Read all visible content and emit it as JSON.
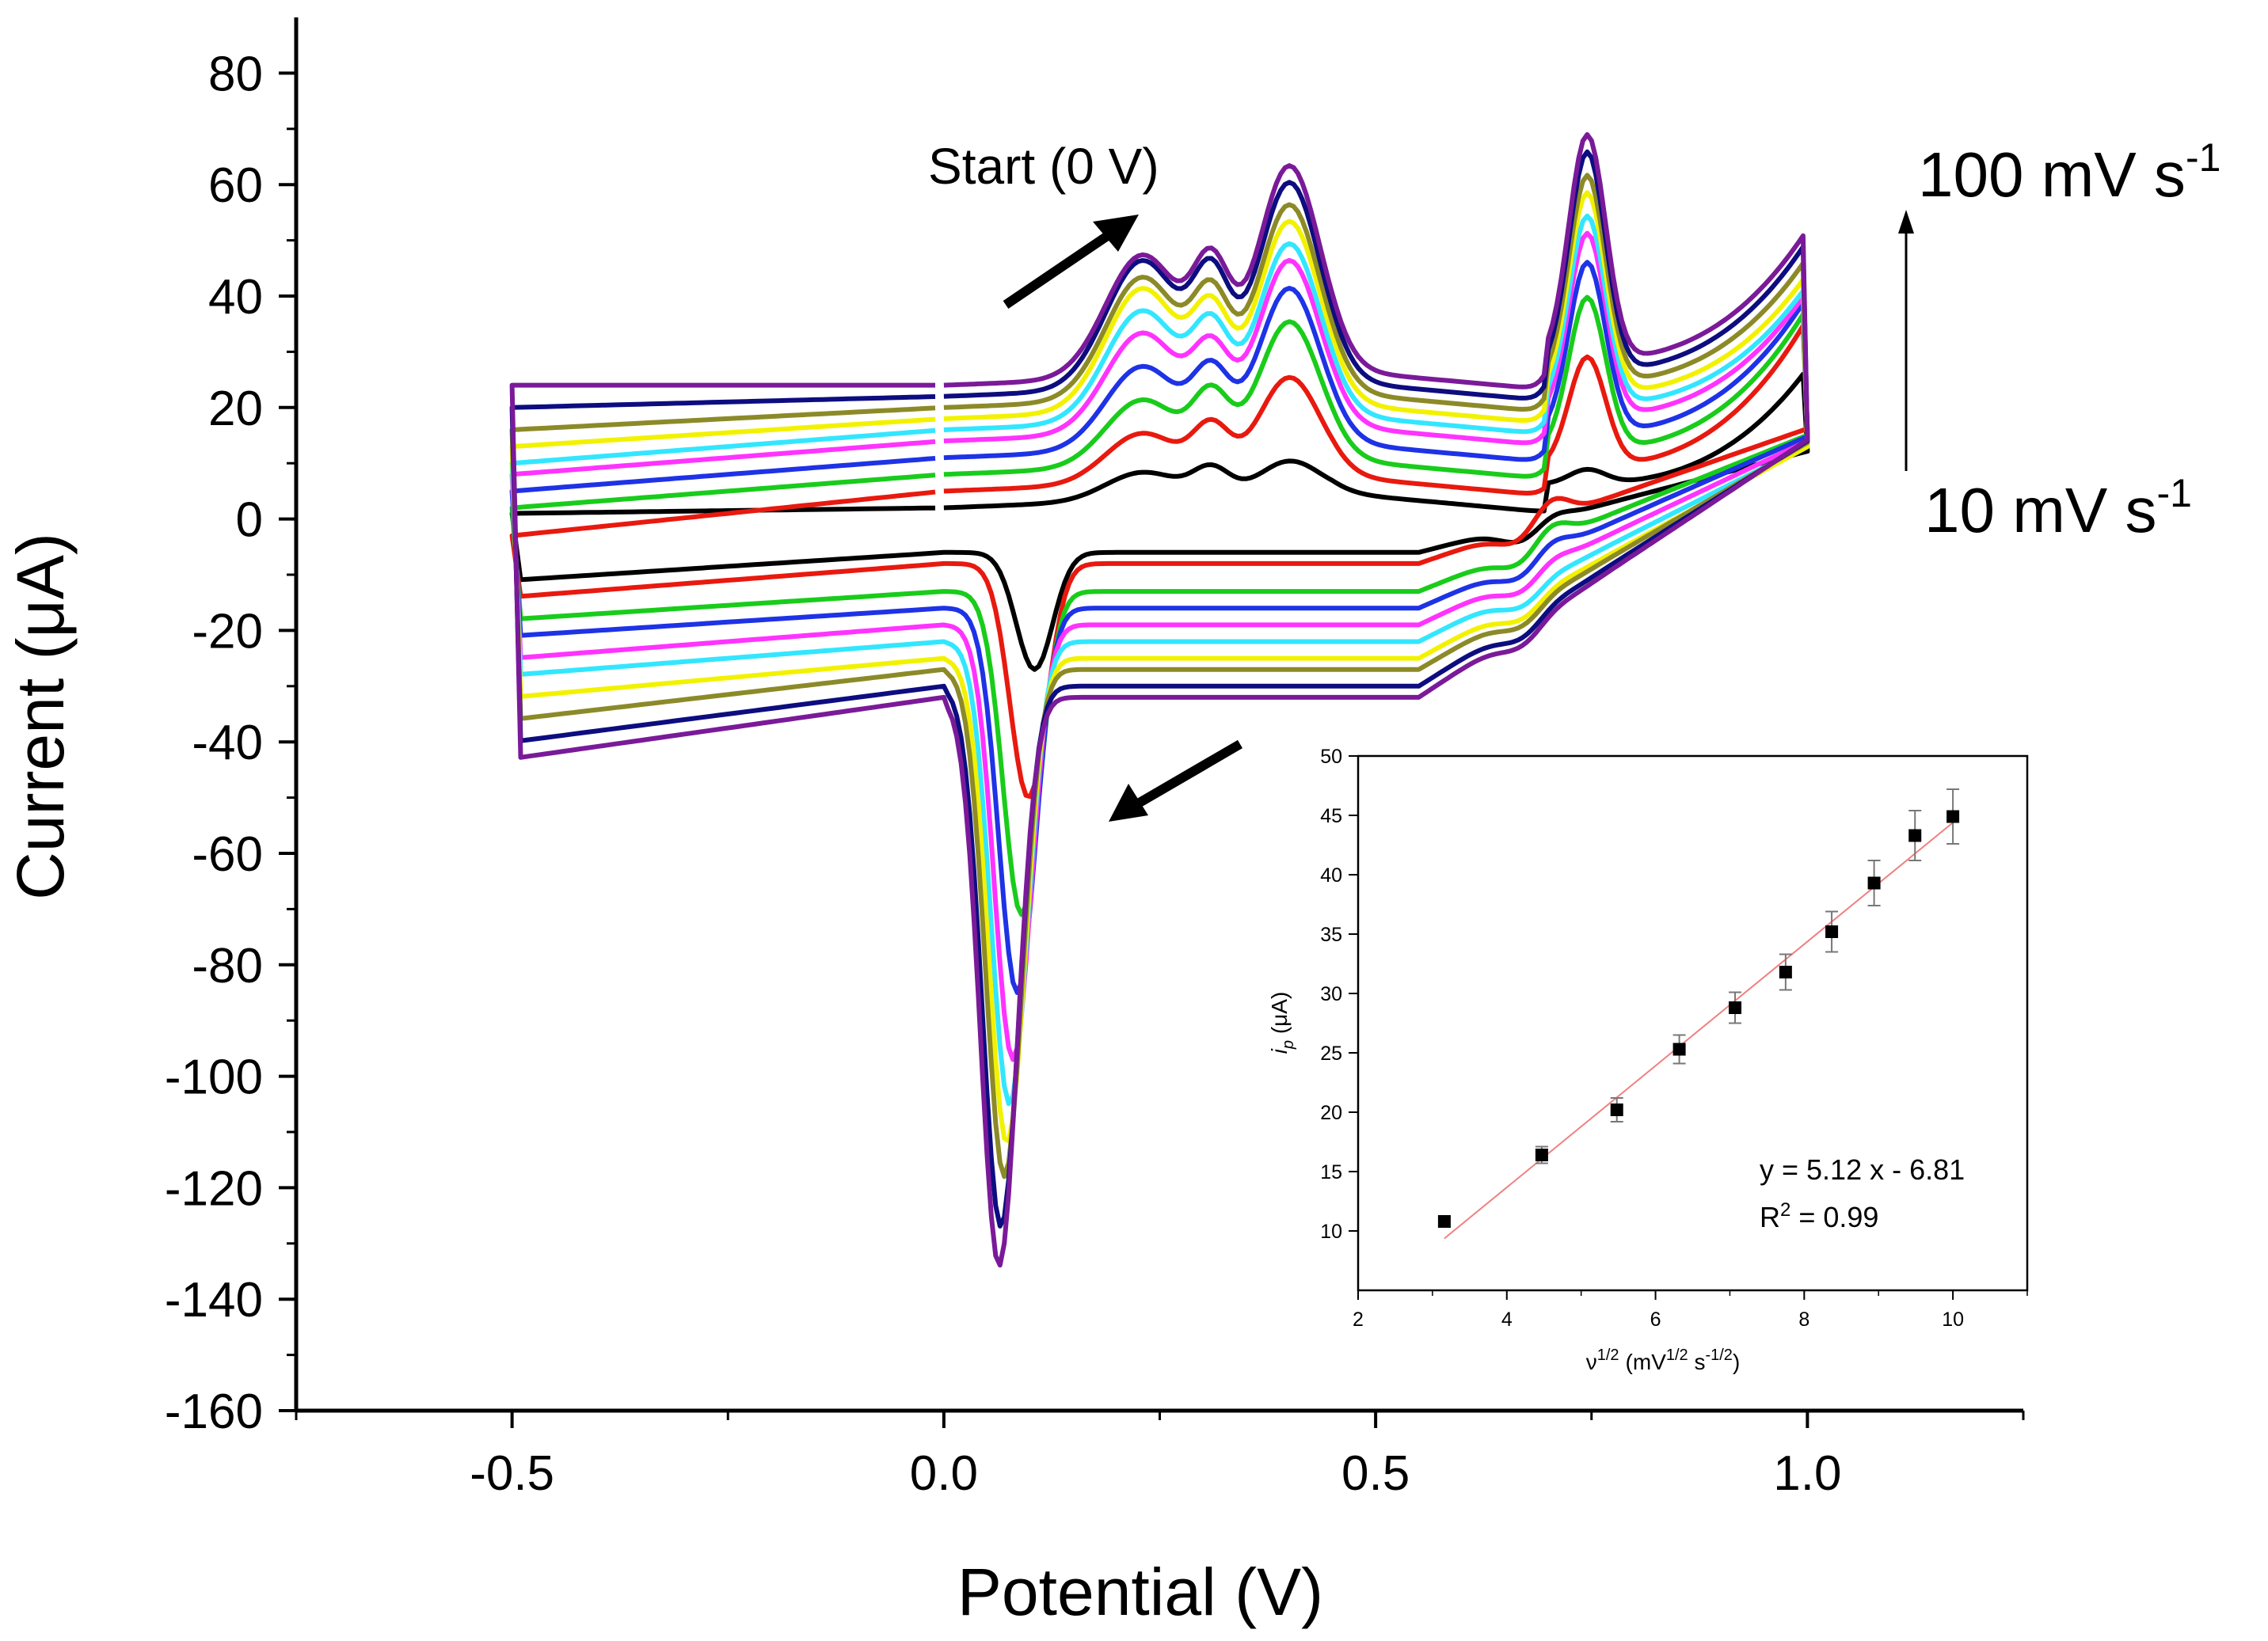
{
  "chart_data": [
    {
      "type": "line",
      "title": "",
      "xlabel": "Potential (V)",
      "ylabel": "Current (μA)",
      "xlim": [
        -0.75,
        1.25
      ],
      "ylim": [
        -160,
        90
      ],
      "xticks": [
        -0.5,
        0.0,
        0.5,
        1.0
      ],
      "xtick_labels": [
        "-0.5",
        "0.0",
        "0.5",
        "1.0"
      ],
      "yticks": [
        -160,
        -140,
        -120,
        -100,
        -80,
        -60,
        -40,
        -20,
        0,
        20,
        40,
        60,
        80
      ],
      "ytick_labels": [
        "-160",
        "-140",
        "-120",
        "-100",
        "-80",
        "-60",
        "-40",
        "-20",
        "0",
        "20",
        "40",
        "60",
        "80"
      ],
      "grid": false,
      "scan_rate_labels": {
        "high": "100 mV s",
        "high_sup": "-1",
        "low": "10 mV s",
        "low_sup": "-1"
      },
      "start_label": "Start (0 V)",
      "series_colors": [
        "#000000",
        "#e8190f",
        "#19cc1b",
        "#1e32e6",
        "#ff33ff",
        "#33e6ff",
        "#f2f200",
        "#8c8a28",
        "#0d0d80",
        "#7a1a99"
      ],
      "series": [
        {
          "anodic_baseline": 2,
          "peak1": 5,
          "peak2": 6,
          "peak3": 6,
          "anodic_end": 27,
          "cathodic_baseline": -6,
          "cathodic_peak": -27,
          "cathodic_peak_potential": 0.105,
          "hump": 3,
          "start_cathodic": -11,
          "start_anodic": 1
        },
        {
          "anodic_baseline": 5,
          "peak1": 9,
          "peak2": 11,
          "peak3": 18,
          "anodic_end": 36,
          "cathodic_baseline": -8,
          "cathodic_peak": -50,
          "cathodic_peak_potential": 0.098,
          "hump": 6,
          "start_cathodic": -14,
          "start_anodic": -3
        },
        {
          "anodic_baseline": 8,
          "peak1": 12,
          "peak2": 14,
          "peak3": 25,
          "anodic_end": 38,
          "cathodic_baseline": -13,
          "cathodic_peak": -71,
          "cathodic_peak_potential": 0.09,
          "hump": 5,
          "start_cathodic": -18,
          "start_anodic": 2
        },
        {
          "anodic_baseline": 11,
          "peak1": 15,
          "peak2": 15,
          "peak3": 28,
          "anodic_end": 40,
          "cathodic_baseline": -16,
          "cathodic_peak": -85,
          "cathodic_peak_potential": 0.085,
          "hump": 4,
          "start_cathodic": -21,
          "start_anodic": 5
        },
        {
          "anodic_baseline": 14,
          "peak1": 18,
          "peak2": 16,
          "peak3": 30,
          "anodic_end": 41,
          "cathodic_baseline": -19,
          "cathodic_peak": -97,
          "cathodic_peak_potential": 0.08,
          "hump": 3,
          "start_cathodic": -25,
          "start_anodic": 8
        },
        {
          "anodic_baseline": 16,
          "peak1": 20,
          "peak2": 18,
          "peak3": 31,
          "anodic_end": 42,
          "cathodic_baseline": -22,
          "cathodic_peak": -105,
          "cathodic_peak_potential": 0.076,
          "hump": 2,
          "start_cathodic": -28,
          "start_anodic": 10
        },
        {
          "anodic_baseline": 18,
          "peak1": 22,
          "peak2": 19,
          "peak3": 33,
          "anodic_end": 44,
          "cathodic_baseline": -25,
          "cathodic_peak": -112,
          "cathodic_peak_potential": 0.073,
          "hump": 2,
          "start_cathodic": -32,
          "start_anodic": 13
        },
        {
          "anodic_baseline": 20,
          "peak1": 22,
          "peak2": 20,
          "peak3": 34,
          "anodic_end": 47,
          "cathodic_baseline": -27,
          "cathodic_peak": -118,
          "cathodic_peak_potential": 0.07,
          "hump": 2,
          "start_cathodic": -36,
          "start_anodic": 16
        },
        {
          "anodic_baseline": 22,
          "peak1": 23,
          "peak2": 22,
          "peak3": 36,
          "anodic_end": 50,
          "cathodic_baseline": -30,
          "cathodic_peak": -127,
          "cathodic_peak_potential": 0.066,
          "hump": 2,
          "start_cathodic": -40,
          "start_anodic": 20
        },
        {
          "anodic_baseline": 24,
          "peak1": 22,
          "peak2": 22,
          "peak3": 37,
          "anodic_end": 52,
          "cathodic_baseline": -32,
          "cathodic_peak": -134,
          "cathodic_peak_potential": 0.064,
          "hump": 2,
          "start_cathodic": -43,
          "start_anodic": 24
        }
      ]
    },
    {
      "type": "scatter",
      "title": "",
      "xlabel": "ν",
      "xlabel_sup": "1/2",
      "xlabel_unit": "(mV",
      "xlabel_unit_sup": "1/2",
      "xlabel_unit2": " s",
      "xlabel_unit2_sup": "-1/2",
      "xlabel_close": ")",
      "ylabel": "i",
      "ylabel_sub": "p",
      "ylabel_unit": " (μA)",
      "xlim": [
        2,
        11
      ],
      "ylim": [
        5,
        50
      ],
      "xticks": [
        2,
        4,
        6,
        8,
        10
      ],
      "yticks": [
        10,
        15,
        20,
        25,
        30,
        35,
        40,
        45,
        50
      ],
      "x": [
        3.16,
        4.47,
        5.48,
        6.32,
        7.07,
        7.75,
        8.37,
        8.94,
        9.49,
        10.0
      ],
      "y": [
        10.8,
        16.4,
        20.2,
        25.3,
        28.8,
        31.8,
        35.2,
        39.3,
        43.3,
        44.9
      ],
      "error": [
        0.4,
        0.7,
        1.0,
        1.2,
        1.3,
        1.5,
        1.7,
        1.9,
        2.1,
        2.3
      ],
      "fit": {
        "slope": 5.12,
        "intercept": -6.81,
        "x_range": [
          3.16,
          10.0
        ],
        "color": "#f08080"
      },
      "equation": "y = 5.12 x - 6.81",
      "r2_prefix": "R",
      "r2_sup": "2",
      "r2_value": " = 0.99"
    }
  ]
}
